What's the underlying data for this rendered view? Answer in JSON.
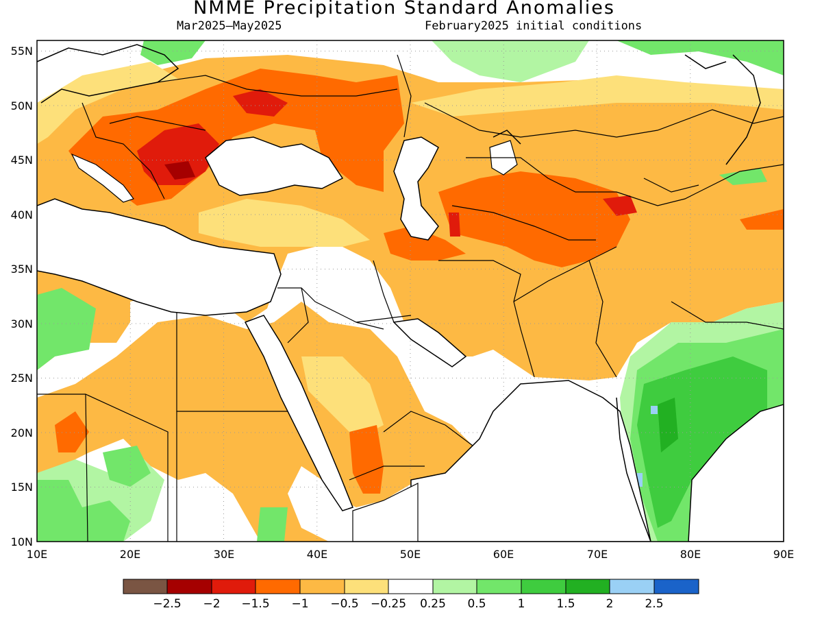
{
  "title": "NMME Precipitation Standard Anomalies",
  "subtitle_left": "Mar2025–May2025",
  "subtitle_right": "February2025 initial conditions",
  "map": {
    "lon_range": [
      10,
      90
    ],
    "lat_range": [
      10,
      56
    ],
    "x_ticks": [
      "10E",
      "20E",
      "30E",
      "40E",
      "50E",
      "60E",
      "70E",
      "80E",
      "90E"
    ],
    "y_ticks": [
      "10N",
      "15N",
      "20N",
      "25N",
      "30N",
      "35N",
      "40N",
      "45N",
      "50N",
      "55N"
    ],
    "grid": true
  },
  "colors": {
    "brown": "#7a5543",
    "darkred": "#a50000",
    "red": "#e01b0b",
    "orange": "#ff6a00",
    "lightorange": "#fdb944",
    "yellow": "#fde07a",
    "white": "#ffffff",
    "lightgreen": "#b2f5a3",
    "green": "#72e66a",
    "midgreen": "#3fcc3f",
    "darkgreen": "#22b022",
    "lightblue": "#9ad0f5",
    "blue": "#1a63c9"
  },
  "colorbar": {
    "labels": [
      "−2.5",
      "−2",
      "−1.5",
      "−1",
      "−0.5",
      "−0.25",
      "0.25",
      "0.5",
      "1",
      "1.5",
      "2",
      "2.5"
    ],
    "colors": [
      "#7a5543",
      "#a50000",
      "#e01b0b",
      "#ff6a00",
      "#fdb944",
      "#fde07a",
      "#ffffff",
      "#b2f5a3",
      "#72e66a",
      "#3fcc3f",
      "#22b022",
      "#9ad0f5",
      "#1a63c9"
    ]
  }
}
